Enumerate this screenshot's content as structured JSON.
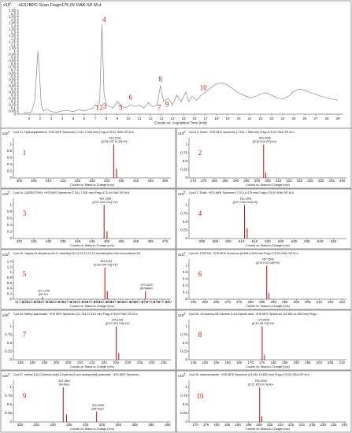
{
  "chart_data": [
    {
      "type": "line",
      "title": "+ESI BPC Scan Frag=175.0V RAK-SP-M.d",
      "ylabel_prefix": "x10",
      "ylabel_exp": "7",
      "xlabel": "Counts vs. Acquisition Time (min)",
      "xlim": [
        0,
        29.5
      ],
      "ylim": [
        0,
        1.65
      ],
      "yticks": [
        "0",
        "0.05",
        "0.1",
        "0.15",
        "0.2",
        "0.25",
        "0.3",
        "0.35",
        "0.4",
        "0.45",
        "0.5",
        "0.55",
        "0.6",
        "0.65",
        "0.7",
        "0.75",
        "0.8",
        "0.85",
        "0.9",
        "0.95",
        "1",
        "1.05",
        "1.1",
        "1.15",
        "1.2",
        "1.25",
        "1.3",
        "1.35",
        "1.4",
        "1.45",
        "1.5",
        "1.55",
        "1.6",
        "1.65"
      ],
      "xticks": [
        "1",
        "2",
        "3",
        "4",
        "5",
        "6",
        "7",
        "8",
        "9",
        "10",
        "11",
        "12",
        "13",
        "14",
        "15",
        "16",
        "17",
        "18",
        "19",
        "20",
        "21",
        "22",
        "23",
        "24",
        "25",
        "26",
        "27",
        "28",
        "29"
      ],
      "x": [
        0.5,
        1.2,
        1.5,
        1.8,
        1.95,
        2.1,
        2.3,
        2.6,
        3.0,
        3.5,
        4.0,
        4.5,
        5.0,
        5.5,
        6.0,
        6.5,
        6.8,
        7.0,
        7.2,
        7.4,
        7.6,
        7.8,
        8.0,
        8.3,
        8.6,
        9.0,
        9.4,
        9.8,
        10.2,
        10.6,
        11.0,
        11.4,
        11.8,
        12.2,
        12.6,
        12.9,
        13.2,
        13.6,
        14.0,
        14.4,
        14.8,
        15.2,
        15.5,
        15.8,
        16.2,
        16.6,
        17.0,
        17.5,
        18.0,
        18.5,
        19.0,
        19.5,
        20.0,
        20.5,
        21.0,
        21.5,
        22.0,
        22.5,
        23.0,
        23.5,
        24.0,
        24.5,
        25.0,
        25.5,
        26.0,
        26.5,
        27.0,
        27.5,
        28.0,
        28.5,
        29.0
      ],
      "y": [
        0.02,
        0.03,
        0.2,
        1.0,
        0.6,
        0.15,
        0.05,
        0.08,
        0.04,
        0.03,
        0.05,
        0.06,
        0.04,
        0.07,
        0.05,
        0.08,
        0.1,
        0.15,
        0.12,
        0.2,
        1.42,
        0.3,
        0.15,
        0.12,
        0.1,
        0.2,
        0.12,
        0.1,
        0.15,
        0.12,
        0.14,
        0.1,
        0.18,
        0.12,
        0.14,
        0.45,
        0.2,
        0.25,
        0.15,
        0.3,
        0.2,
        0.35,
        0.2,
        0.28,
        0.22,
        0.3,
        0.35,
        0.42,
        0.48,
        0.5,
        0.46,
        0.4,
        0.34,
        0.3,
        0.26,
        0.28,
        0.32,
        0.34,
        0.3,
        0.26,
        0.24,
        0.28,
        0.36,
        0.4,
        0.38,
        0.34,
        0.32,
        0.28,
        0.26,
        0.24,
        0.22
      ],
      "annotations": [
        {
          "label": "1",
          "x": 7.2,
          "y": 0.06
        },
        {
          "label": "2",
          "x": 7.55,
          "y": 0.07
        },
        {
          "label": "3",
          "x": 7.85,
          "y": 0.09
        },
        {
          "label": "4",
          "x": 7.8,
          "y": 1.46
        },
        {
          "label": "5",
          "x": 9.3,
          "y": 0.07
        },
        {
          "label": "6",
          "x": 10.2,
          "y": 0.23
        },
        {
          "label": "7",
          "x": 12.8,
          "y": 0.07
        },
        {
          "label": "8",
          "x": 12.9,
          "y": 0.52
        },
        {
          "label": "9",
          "x": 13.5,
          "y": 0.12
        },
        {
          "label": "10",
          "x": 16.8,
          "y": 0.38
        }
      ]
    },
    {
      "type": "bar",
      "title": "Cpd 13: Hydroxyalmitelrol: +ESI MFE Spectrum (7.241-7.508 min) Frag=175.0V RAK-SP-M.d",
      "ylabel_prefix": "x10",
      "ylabel_exp": "5",
      "xlabel": "Counts vs. Mass-to-Charge (m/z)",
      "xlim": [
        398,
        452
      ],
      "ylim": [
        0,
        1.2
      ],
      "xticks": [
        "400",
        "405",
        "410",
        "415",
        "420",
        "425",
        "430",
        "435",
        "440",
        "445",
        "450"
      ],
      "yticks": [
        "0",
        "0.2",
        "0.4",
        "0.6",
        "0.8",
        "1"
      ],
      "peaks": [
        [
          432.3796,
          1.0
        ],
        [
          433.38,
          0.28
        ]
      ],
      "peak_labels": [
        {
          "x": 432.3796,
          "text": "432.3796"
        },
        {
          "x": 432.3796,
          "text": "([C25 H37 N O3]+H)+"
        }
      ],
      "marker": "1"
    },
    {
      "type": "bar",
      "title": "Cpd 14: Morin: +ESI MFE Spectrum (7.291-7.508 min) Frag=175.0V RAK-SP-M.d",
      "ylabel_prefix": "x10",
      "ylabel_exp": "5",
      "xlabel": "Counts vs. Mass-to-Charge (m/z)",
      "xlim": [
        268,
        342
      ],
      "ylim": [
        0,
        1.2
      ],
      "xticks": [
        "270",
        "275",
        "280",
        "285",
        "290",
        "295",
        "300",
        "305",
        "310",
        "315",
        "320",
        "325",
        "330",
        "335",
        "340"
      ],
      "yticks": [
        "0",
        "0.25",
        "0.5",
        "0.75",
        "1"
      ],
      "peaks": [
        [
          303.0495,
          1.0
        ],
        [
          304.05,
          0.16
        ]
      ],
      "peak_labels": [
        {
          "x": 303.0495,
          "text": "303.0495"
        },
        {
          "x": 303.0495,
          "text": "([C15 H10 O7]+H)+"
        }
      ],
      "marker": "2"
    },
    {
      "type": "bar",
      "title": "Cpd 16: QUERCITRIN: +ESI MFE Spectrum (7.541-7.992 min) Frag=175.0V RAK-SP-M.d",
      "ylabel_prefix": "x10",
      "ylabel_exp": "5",
      "xlabel": "Counts vs. Mass-to-Charge (m/z)",
      "xlim": [
        418,
        472
      ],
      "ylim": [
        0,
        1.2
      ],
      "xticks": [
        "420",
        "425",
        "430",
        "435",
        "440",
        "445",
        "450",
        "455",
        "460",
        "465",
        "470"
      ],
      "yticks": [
        "0",
        "0.2",
        "0.4",
        "0.6",
        "0.8",
        "1"
      ],
      "peaks": [
        [
          449.1066,
          1.0
        ],
        [
          450.11,
          0.22
        ]
      ],
      "peak_labels": [
        {
          "x": 449.1066,
          "text": "449.1066"
        },
        {
          "x": 449.1066,
          "text": "([C21 H20 O11]+H)+"
        }
      ],
      "marker": "3"
    },
    {
      "type": "bar",
      "title": "Cpd 17: Rutin: +ESI MFE Spectrum (7.574-8.375 min) Frag=175.0V RAK-SP-M.d",
      "ylabel_prefix": "x10",
      "ylabel_exp": "5",
      "xlabel": "Counts vs. Mass-to-Charge (m/z)",
      "xlim": [
        590,
        650
      ],
      "ylim": [
        0,
        1.2
      ],
      "xticks": [
        "595",
        "600",
        "605",
        "610",
        "615",
        "620",
        "625",
        "630",
        "635",
        "640",
        "645"
      ],
      "yticks": [
        "0",
        "0.25",
        "0.5",
        "0.75",
        "1"
      ],
      "peaks": [
        [
          611.1595,
          1.0
        ],
        [
          612.16,
          0.3
        ]
      ],
      "peak_labels": [
        {
          "x": 611.1595,
          "text": "611.1595"
        },
        {
          "x": 611.1595,
          "text": "([C27 H30 O16]+H)+"
        }
      ],
      "marker": "4"
    },
    {
      "type": "bar",
      "title": "Cpd 20: 1alpha,25-dihydroxy-26,27-dimethyl-20,21,22,22,23,23-hexadehydro-24a-homovitamin D3",
      "ylabel_prefix": "x10",
      "ylabel_exp": "6",
      "xlabel": "Counts vs. Mass-to-Charge (m/z)",
      "xlim": [
        415,
        481
      ],
      "ylim": [
        0,
        1.5
      ],
      "xticks": [
        "417.5",
        "420",
        "422.5",
        "425",
        "427.5",
        "430",
        "432.5",
        "435",
        "437.5",
        "440",
        "442.5",
        "445",
        "447.5",
        "450",
        "452.5",
        "455",
        "457.5",
        "460",
        "462.5",
        "465",
        "467.5",
        "470",
        "472.5",
        "475",
        "477.5",
        "480"
      ],
      "yticks": [
        "0",
        "0.2",
        "0.4",
        "0.6",
        "0.8",
        "1",
        "1.2",
        "1.4"
      ],
      "peaks": [
        [
          427.1748,
          0.08
        ],
        [
          453.3423,
          1.18
        ],
        [
          454.35,
          0.3
        ],
        [
          470.3243,
          0.3
        ]
      ],
      "peak_labels": [
        {
          "x": 427.1748,
          "text": "427.1748"
        },
        {
          "x": 427.1748,
          "text": "(M+Tr)+"
        },
        {
          "x": 453.3423,
          "text": "453.3423"
        },
        {
          "x": 453.3423,
          "text": "([C30 H44 O3]+H)+"
        },
        {
          "x": 470.3243,
          "text": "470.3243"
        },
        {
          "x": 470.3243,
          "text": "(M+NH4)+"
        }
      ],
      "marker": "5"
    },
    {
      "type": "bar",
      "title": "Cpd 23: FISETIN: +ESI MFE Spectrum (8.408-9.009 min) Frag=175.0V RAK-SP-M.d",
      "ylabel_prefix": "x10",
      "ylabel_exp": "6",
      "xlabel": "Counts vs. Mass-to-Charge (m/z)",
      "xlim": [
        253,
        322
      ],
      "ylim": [
        0,
        1.2
      ],
      "xticks": [
        "255",
        "260",
        "265",
        "270",
        "275",
        "280",
        "285",
        "290",
        "295",
        "300",
        "305",
        "310",
        "315",
        "320"
      ],
      "yticks": [
        "0",
        "0.2",
        "0.4",
        "0.6",
        "0.8",
        "1"
      ],
      "peaks": [
        [
          287.0543,
          1.0
        ],
        [
          288.06,
          0.18
        ]
      ],
      "peak_labels": [
        {
          "x": 287.0543,
          "text": "287.0543"
        },
        {
          "x": 287.0543,
          "text": "([C15 H10 O6]+H)+"
        }
      ],
      "marker": "6"
    },
    {
      "type": "bar",
      "title": "Cpd 34: Methyl jasmonate: +ESI MFE Spectrum (12.764-13.415 min) Frag=175.0V RAK-SP-M.d",
      "ylabel_prefix": "x10",
      "ylabel_exp": "5",
      "xlabel": "Counts vs. Mass-to-Charge (m/z)",
      "xlim": [
        182,
        248
      ],
      "ylim": [
        0,
        1.2
      ],
      "xticks": [
        "185",
        "190",
        "195",
        "200",
        "205",
        "210",
        "215",
        "220",
        "225",
        "230",
        "235",
        "240",
        "245"
      ],
      "yticks": [
        "0",
        "0.25",
        "0.5",
        "0.75",
        "1"
      ],
      "peaks": [
        [
          225.1491,
          1.0
        ],
        [
          226.15,
          0.2
        ]
      ],
      "peak_labels": [
        {
          "x": 225.1491,
          "text": "225.1491"
        },
        {
          "x": 225.1491,
          "text": "([C13 H20 O3]+H)+"
        }
      ],
      "marker": "7"
    },
    {
      "type": "bar",
      "title": "Cpd 36: 10-hydroxy-8E-Decene-2,4,6-triynoic acid: +ESI MFE Spectrum (13.365-14.550 min) Frag=...",
      "ylabel_prefix": "x10",
      "ylabel_exp": "5",
      "xlabel": "Counts vs. Mass-to-Charge (m/z)",
      "xlim": [
        143,
        212
      ],
      "ylim": [
        0,
        1.2
      ],
      "xticks": [
        "145",
        "150",
        "155",
        "160",
        "165",
        "170",
        "175",
        "180",
        "185",
        "190",
        "195",
        "200",
        "205",
        "210"
      ],
      "yticks": [
        "0",
        "0.25",
        "0.5",
        "0.75",
        "1"
      ],
      "peaks": [
        [
          175.0546,
          1.0
        ],
        [
          176.06,
          0.15
        ]
      ],
      "peak_labels": [
        {
          "x": 175.0546,
          "text": "175.0546"
        },
        {
          "x": 175.0546,
          "text": "([C10 H8 O3]+H)+"
        }
      ],
      "marker": "8"
    },
    {
      "type": "bar",
      "title": "Cpd 37: methyl 8-[2-(2-formyl-vinyl)-3-hydroxy-5-oxo-cyclopentyl]-octanoate: +ESI MFE Spectrum...",
      "ylabel_prefix": "x10",
      "ylabel_exp": "5",
      "xlabel": "Counts vs. Mass-to-Charge (m/z)",
      "xlim": [
        318,
        366
      ],
      "ylim": [
        0,
        1.2
      ],
      "xticks": [
        "320",
        "325",
        "330",
        "335",
        "340",
        "345",
        "350",
        "355",
        "360",
        "365"
      ],
      "yticks": [
        "0",
        "0.25",
        "0.5",
        "0.75",
        "1"
      ],
      "peaks": [
        [
          333.1861,
          1.0
        ],
        [
          334.19,
          0.22
        ],
        [
          343.3458,
          0.3
        ]
      ],
      "peak_labels": [
        {
          "x": 333.1861,
          "text": "333.1861"
        },
        {
          "x": 333.1861,
          "text": "(M+Na)+"
        },
        {
          "x": 343.3458,
          "text": "343.3458"
        },
        {
          "x": 343.3458,
          "text": "(2M+Na)+"
        }
      ],
      "marker": "9"
    },
    {
      "type": "bar",
      "title": "Cpd 40: dodecanamide: +ESI MFE Spectrum (15.084-15.852 min) Frag=175.0V RAK-SP-M.d",
      "ylabel_prefix": "x10",
      "ylabel_exp": "5",
      "xlabel": "Counts vs. Mass-to-Charge (m/z)",
      "xlim": [
        167,
        241
      ],
      "ylim": [
        0,
        1.2
      ],
      "xticks": [
        "170",
        "175",
        "180",
        "185",
        "190",
        "195",
        "200",
        "205",
        "210",
        "215",
        "220",
        "225",
        "230",
        "235",
        "240"
      ],
      "yticks": [
        "0",
        "0.25",
        "0.5",
        "0.75",
        "1"
      ],
      "peaks": [
        [
          200.2003,
          1.0
        ],
        [
          201.2,
          0.16
        ]
      ],
      "peak_labels": [
        {
          "x": 200.2003,
          "text": "200.2003"
        },
        {
          "x": 200.2003,
          "text": "([C12 H25 N O]+H)+"
        }
      ],
      "marker": "10"
    }
  ]
}
